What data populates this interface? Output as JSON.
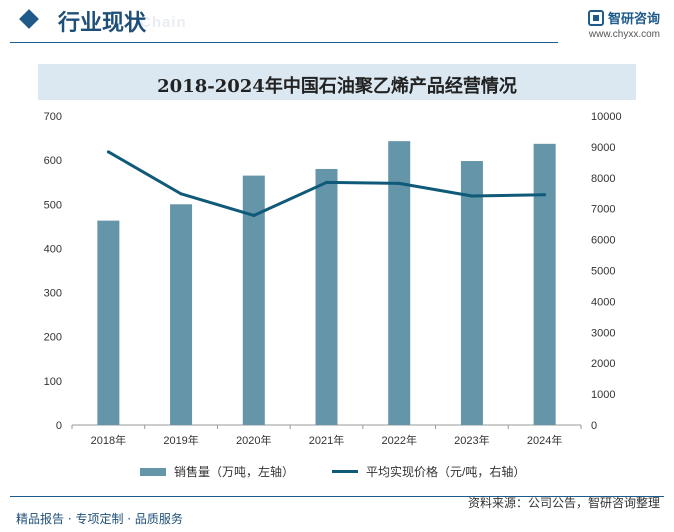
{
  "header": {
    "title": "行业现状",
    "ghost_text": "Chain",
    "brand_name": "智研咨询",
    "brand_url": "www.chyxx.com"
  },
  "chart_data": {
    "type": "bar+line",
    "title": "2018-2024年中国石油聚乙烯产品经营情况",
    "categories": [
      "2018年",
      "2019年",
      "2020年",
      "2021年",
      "2022年",
      "2023年",
      "2024年"
    ],
    "series": [
      {
        "name": "销售量（万吨，左轴）",
        "type": "bar",
        "axis": "left",
        "color": "#6495a9",
        "values": [
          463,
          500,
          565,
          580,
          643,
          598,
          637
        ]
      },
      {
        "name": "平均实现价格（元/吨，右轴）",
        "type": "line",
        "axis": "right",
        "color": "#0f5a78",
        "values": [
          8840,
          7480,
          6780,
          7850,
          7820,
          7410,
          7450
        ]
      }
    ],
    "left_axis": {
      "min": 0,
      "max": 700,
      "step": 100,
      "ticks": [
        "0",
        "100",
        "200",
        "300",
        "400",
        "500",
        "600",
        "700"
      ]
    },
    "right_axis": {
      "min": 0,
      "max": 10000,
      "step": 1000,
      "ticks": [
        "0",
        "1000",
        "2000",
        "3000",
        "4000",
        "5000",
        "6000",
        "7000",
        "8000",
        "9000",
        "10000"
      ]
    },
    "grid": false,
    "legend": "bottom"
  },
  "footer": {
    "left": "精品报告 · 专项定制 · 品质服务",
    "right": "资料来源：公司公告，智研咨询整理"
  }
}
